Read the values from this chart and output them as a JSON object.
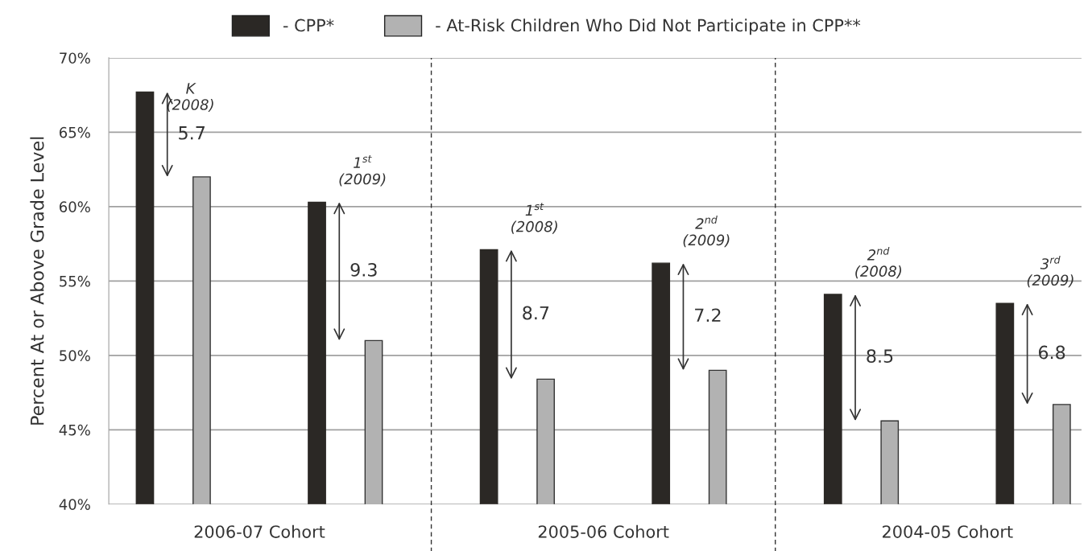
{
  "chart_data": {
    "type": "bar",
    "categories": [
      "K\n(2008)",
      "1$^{st}$\n(2009)",
      "1$^{st}$\n(2008)",
      "2$^{nd}$\n(2009)",
      "2$^{nd}$\n(2008)",
      "3$^{rd}$\n(2009)"
    ],
    "series": [
      {
        "name": "- CPP*",
        "color": "#2b2825",
        "values": [
          67.7,
          60.3,
          57.1,
          56.2,
          54.1,
          53.5
        ]
      },
      {
        "name": "- At-Risk Children Who Did Not Participate in CPP**",
        "color": "#b2b2b2",
        "values": [
          62.0,
          51.0,
          48.4,
          49.0,
          45.6,
          46.7
        ]
      }
    ],
    "ylabel": "Percent At or Above Grade Level",
    "ylim": [
      40,
      70
    ],
    "yticks": [
      {
        "value": 40,
        "label": "40%"
      },
      {
        "value": 45,
        "label": "45%"
      },
      {
        "value": 50,
        "label": "50%"
      },
      {
        "value": 55,
        "label": "55%"
      },
      {
        "value": 60,
        "label": "60%"
      },
      {
        "value": 65,
        "label": "65%"
      },
      {
        "value": 70,
        "label": "70%"
      }
    ],
    "grid": "y",
    "legend": "top",
    "annotations": [
      "5.7",
      "9.3",
      "8.7",
      "7.2",
      "8.5",
      "6.8",
      "2006-07 Cohort",
      "2005-06 Cohort",
      "2004-05 Cohort"
    ]
  }
}
